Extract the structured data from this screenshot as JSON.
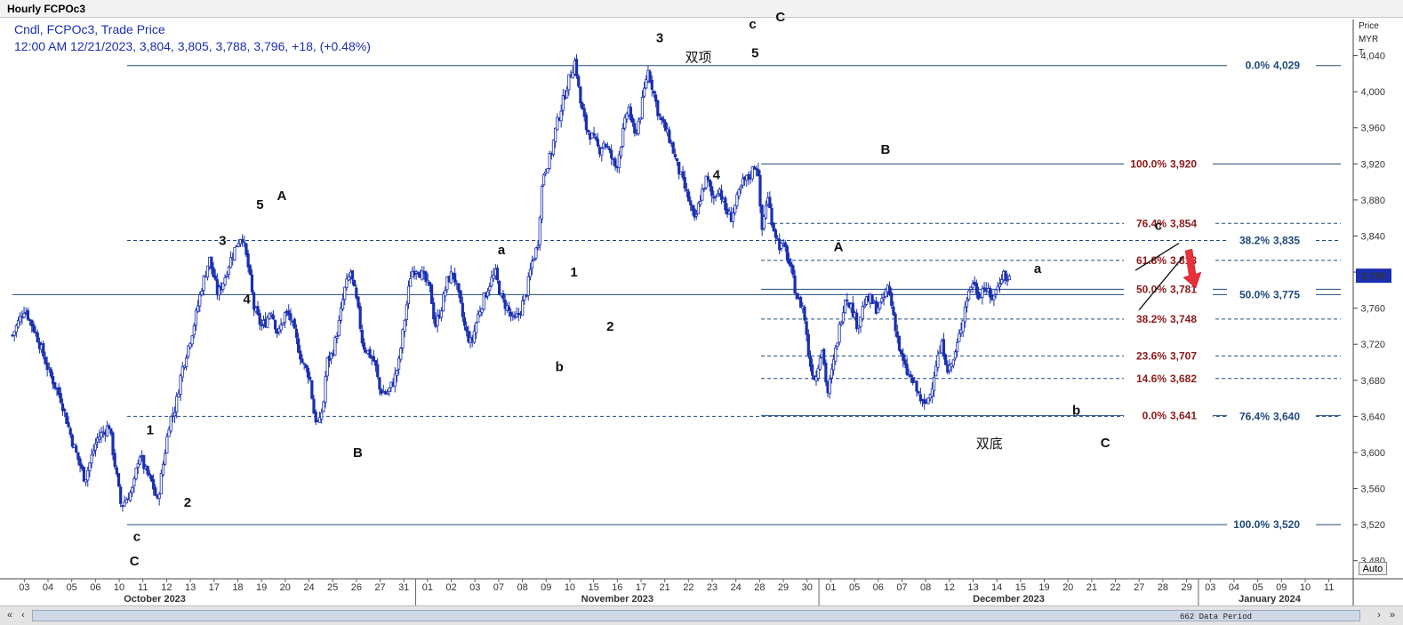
{
  "window": {
    "title": "Hourly FCPOc3"
  },
  "legend": {
    "line1": "Cndl, FCPOc3, Trade Price",
    "line2": "12:00 AM 12/21/2023, 3,804, 3,805, 3,788, 3,796, +18, (+0.48%)"
  },
  "price_axis": {
    "header": [
      "Price",
      "MYR",
      "T"
    ],
    "auto_label": "Auto",
    "last_price_badge": "3,796"
  },
  "scrollbar": {
    "data_period": "662 Data Period",
    "left_buttons": [
      "«",
      "‹"
    ],
    "right_buttons": [
      "›",
      "»"
    ]
  },
  "colors": {
    "candle": "#1a2fb0",
    "level_line": "#1e4a7a",
    "fib_retrace": "#8b1a1a",
    "fib_ext": "#1e4a7a",
    "arrow": "#e8303a"
  },
  "chart_data": {
    "type": "candlestick",
    "instrument": "FCPOc3",
    "interval": "Hourly",
    "ylim": [
      3460,
      4080
    ],
    "y_ticks": [
      3480,
      3520,
      3560,
      3600,
      3640,
      3680,
      3720,
      3760,
      3800,
      3840,
      3880,
      3920,
      3960,
      4000,
      4040
    ],
    "y_tick_labels": [
      "3,480",
      "3,520",
      "3,560",
      "3,600",
      "3,640",
      "3,680",
      "3,720",
      "3,760",
      "3,800",
      "3,840",
      "3,880",
      "3,920",
      "3,960",
      "4,000",
      "4,040"
    ],
    "x_day_labels": [
      "03",
      "04",
      "05",
      "06",
      "10",
      "11",
      "12",
      "13",
      "17",
      "18",
      "19",
      "20",
      "24",
      "25",
      "26",
      "27",
      "31",
      "01",
      "02",
      "03",
      "07",
      "08",
      "09",
      "10",
      "15",
      "16",
      "17",
      "21",
      "22",
      "23",
      "24",
      "28",
      "29",
      "30",
      "01",
      "05",
      "06",
      "07",
      "08",
      "12",
      "13",
      "14",
      "15",
      "19",
      "20",
      "21",
      "22",
      "27",
      "28",
      "29",
      "03",
      "04",
      "05",
      "09",
      "10",
      "11"
    ],
    "x_month_labels": [
      "October 2023",
      "November 2023",
      "December 2023",
      "January 2024"
    ],
    "price_path": [
      {
        "d": 0,
        "p": 3730
      },
      {
        "d": 1,
        "p": 3760
      },
      {
        "d": 2,
        "p": 3730
      },
      {
        "d": 3,
        "p": 3690
      },
      {
        "d": 4,
        "p": 3660
      },
      {
        "d": 5,
        "p": 3610
      },
      {
        "d": 6,
        "p": 3570
      },
      {
        "d": 7,
        "p": 3615
      },
      {
        "d": 8,
        "p": 3630
      },
      {
        "d": 9,
        "p": 3540
      },
      {
        "d": 10,
        "p": 3560
      },
      {
        "d": 10.5,
        "p": 3600
      },
      {
        "d": 11,
        "p": 3580
      },
      {
        "d": 11.6,
        "p": 3565
      },
      {
        "d": 12,
        "p": 3545
      },
      {
        "d": 12.4,
        "p": 3580
      },
      {
        "d": 13,
        "p": 3635
      },
      {
        "d": 13.5,
        "p": 3650
      },
      {
        "d": 14,
        "p": 3690
      },
      {
        "d": 15,
        "p": 3740
      },
      {
        "d": 15.7,
        "p": 3785
      },
      {
        "d": 16.3,
        "p": 3815
      },
      {
        "d": 17,
        "p": 3775
      },
      {
        "d": 17.6,
        "p": 3795
      },
      {
        "d": 18,
        "p": 3812
      },
      {
        "d": 18.6,
        "p": 3832
      },
      {
        "d": 19,
        "p": 3842
      },
      {
        "d": 19.6,
        "p": 3800
      },
      {
        "d": 20,
        "p": 3760
      },
      {
        "d": 20.6,
        "p": 3740
      },
      {
        "d": 21,
        "p": 3745
      },
      {
        "d": 21.4,
        "p": 3760
      },
      {
        "d": 21.8,
        "p": 3740
      },
      {
        "d": 22,
        "p": 3730
      },
      {
        "d": 22.6,
        "p": 3755
      },
      {
        "d": 23,
        "p": 3750
      },
      {
        "d": 23.4,
        "p": 3730
      },
      {
        "d": 24,
        "p": 3700
      },
      {
        "d": 24.6,
        "p": 3685
      },
      {
        "d": 25,
        "p": 3640
      },
      {
        "d": 25.4,
        "p": 3630
      },
      {
        "d": 25.8,
        "p": 3660
      },
      {
        "d": 26,
        "p": 3700
      },
      {
        "d": 26.5,
        "p": 3710
      },
      {
        "d": 27,
        "p": 3740
      },
      {
        "d": 27.5,
        "p": 3780
      },
      {
        "d": 28,
        "p": 3800
      },
      {
        "d": 28.6,
        "p": 3760
      },
      {
        "d": 29,
        "p": 3720
      },
      {
        "d": 30,
        "p": 3700
      },
      {
        "d": 30.4,
        "p": 3670
      },
      {
        "d": 31,
        "p": 3665
      },
      {
        "d": 31.6,
        "p": 3680
      },
      {
        "d": 32,
        "p": 3700
      },
      {
        "d": 32.6,
        "p": 3760
      },
      {
        "d": 33,
        "p": 3800
      },
      {
        "d": 33.5,
        "p": 3805
      },
      {
        "d": 34,
        "p": 3795
      },
      {
        "d": 34.6,
        "p": 3780
      },
      {
        "d": 35,
        "p": 3740
      },
      {
        "d": 35.5,
        "p": 3760
      },
      {
        "d": 36,
        "p": 3790
      },
      {
        "d": 36.5,
        "p": 3800
      },
      {
        "d": 37,
        "p": 3770
      },
      {
        "d": 37.5,
        "p": 3735
      },
      {
        "d": 38,
        "p": 3720
      },
      {
        "d": 38.5,
        "p": 3750
      },
      {
        "d": 39,
        "p": 3770
      },
      {
        "d": 39.6,
        "p": 3790
      },
      {
        "d": 40,
        "p": 3798
      },
      {
        "d": 40.5,
        "p": 3770
      },
      {
        "d": 41,
        "p": 3760
      },
      {
        "d": 41.5,
        "p": 3745
      },
      {
        "d": 42,
        "p": 3755
      },
      {
        "d": 42.6,
        "p": 3780
      },
      {
        "d": 43,
        "p": 3810
      },
      {
        "d": 43.5,
        "p": 3830
      },
      {
        "d": 43.8,
        "p": 3890
      },
      {
        "d": 44,
        "p": 3910
      },
      {
        "d": 44.6,
        "p": 3930
      },
      {
        "d": 45,
        "p": 3960
      },
      {
        "d": 45.6,
        "p": 3990
      },
      {
        "d": 46,
        "p": 4010
      },
      {
        "d": 46.6,
        "p": 4035
      },
      {
        "d": 47,
        "p": 3990
      },
      {
        "d": 47.5,
        "p": 3960
      },
      {
        "d": 48,
        "p": 3950
      },
      {
        "d": 48.6,
        "p": 3935
      },
      {
        "d": 49,
        "p": 3945
      },
      {
        "d": 49.5,
        "p": 3930
      },
      {
        "d": 50,
        "p": 3915
      },
      {
        "d": 50.5,
        "p": 3950
      },
      {
        "d": 51,
        "p": 3985
      },
      {
        "d": 51.5,
        "p": 3950
      },
      {
        "d": 52,
        "p": 3975
      },
      {
        "d": 52.6,
        "p": 4025
      },
      {
        "d": 53,
        "p": 4005
      },
      {
        "d": 53.5,
        "p": 3975
      },
      {
        "d": 54,
        "p": 3960
      },
      {
        "d": 54.5,
        "p": 3945
      },
      {
        "d": 55,
        "p": 3920
      },
      {
        "d": 55.5,
        "p": 3900
      },
      {
        "d": 56,
        "p": 3880
      },
      {
        "d": 56.5,
        "p": 3855
      },
      {
        "d": 57,
        "p": 3885
      },
      {
        "d": 57.5,
        "p": 3905
      },
      {
        "d": 58,
        "p": 3880
      },
      {
        "d": 58.5,
        "p": 3895
      },
      {
        "d": 59,
        "p": 3870
      },
      {
        "d": 59.5,
        "p": 3860
      },
      {
        "d": 60,
        "p": 3880
      },
      {
        "d": 60.5,
        "p": 3900
      },
      {
        "d": 61,
        "p": 3905
      },
      {
        "d": 61.5,
        "p": 3920
      },
      {
        "d": 61.8,
        "p": 3910
      },
      {
        "d": 62,
        "p": 3840
      },
      {
        "d": 62.5,
        "p": 3885
      },
      {
        "d": 63,
        "p": 3850
      },
      {
        "d": 63.5,
        "p": 3830
      },
      {
        "d": 64,
        "p": 3825
      },
      {
        "d": 64.5,
        "p": 3800
      },
      {
        "d": 65,
        "p": 3770
      },
      {
        "d": 65.5,
        "p": 3760
      },
      {
        "d": 66,
        "p": 3700
      },
      {
        "d": 66.5,
        "p": 3680
      },
      {
        "d": 67,
        "p": 3720
      },
      {
        "d": 67.5,
        "p": 3665
      },
      {
        "d": 68,
        "p": 3700
      },
      {
        "d": 68.5,
        "p": 3740
      },
      {
        "d": 69,
        "p": 3775
      },
      {
        "d": 69.5,
        "p": 3760
      },
      {
        "d": 70,
        "p": 3740
      },
      {
        "d": 70.5,
        "p": 3765
      },
      {
        "d": 71,
        "p": 3770
      },
      {
        "d": 71.5,
        "p": 3760
      },
      {
        "d": 72,
        "p": 3765
      },
      {
        "d": 72.5,
        "p": 3785
      },
      {
        "d": 73,
        "p": 3750
      },
      {
        "d": 73.5,
        "p": 3710
      },
      {
        "d": 74,
        "p": 3690
      },
      {
        "d": 74.5,
        "p": 3680
      },
      {
        "d": 75,
        "p": 3665
      },
      {
        "d": 75.5,
        "p": 3650
      },
      {
        "d": 76,
        "p": 3665
      },
      {
        "d": 76.5,
        "p": 3700
      },
      {
        "d": 77,
        "p": 3720
      },
      {
        "d": 77.5,
        "p": 3690
      },
      {
        "d": 78,
        "p": 3705
      },
      {
        "d": 78.5,
        "p": 3735
      },
      {
        "d": 79,
        "p": 3770
      },
      {
        "d": 79.5,
        "p": 3790
      },
      {
        "d": 80,
        "p": 3775
      },
      {
        "d": 80.5,
        "p": 3785
      },
      {
        "d": 81,
        "p": 3770
      },
      {
        "d": 81.5,
        "p": 3780
      },
      {
        "d": 82,
        "p": 3800
      },
      {
        "d": 82.4,
        "p": 3790
      },
      {
        "d": 82.6,
        "p": 3796
      }
    ],
    "day_axis_range": [
      0,
      110
    ],
    "horizontal_levels": [
      {
        "start_day": 9.5,
        "end_day": 110,
        "price": 4029,
        "style": "solid"
      },
      {
        "start_day": 62,
        "end_day": 110,
        "price": 3920,
        "style": "solid"
      },
      {
        "start_day": 9.5,
        "end_day": 110,
        "price": 3835,
        "style": "dashed"
      },
      {
        "start_day": 62,
        "end_day": 110,
        "price": 3854,
        "style": "dashed"
      },
      {
        "start_day": 62,
        "end_day": 110,
        "price": 3813,
        "style": "dashed"
      },
      {
        "start_day": 62,
        "end_day": 110,
        "price": 3781,
        "style": "solid"
      },
      {
        "start_day": 0,
        "end_day": 110,
        "price": 3775,
        "style": "solid"
      },
      {
        "start_day": 62,
        "end_day": 110,
        "price": 3748,
        "style": "dashed"
      },
      {
        "start_day": 62,
        "end_day": 110,
        "price": 3707,
        "style": "dashed"
      },
      {
        "start_day": 62,
        "end_day": 110,
        "price": 3682,
        "style": "dashed"
      },
      {
        "start_day": 62,
        "end_day": 110,
        "price": 3641,
        "style": "solid"
      },
      {
        "start_day": 9.5,
        "end_day": 110,
        "price": 3640,
        "style": "dashed"
      },
      {
        "start_day": 9.5,
        "end_day": 110,
        "price": 3520,
        "style": "solid"
      }
    ],
    "fib_labels": [
      {
        "text": "0.0%",
        "value": "4,029",
        "price": 4029,
        "group": "ext",
        "col": "right"
      },
      {
        "text": "100.0%",
        "value": "3,920",
        "price": 3920,
        "group": "ret",
        "col": "mid"
      },
      {
        "text": "76.4%",
        "value": "3,854",
        "price": 3854,
        "group": "ret",
        "col": "mid"
      },
      {
        "text": "38.2%",
        "value": "3,835",
        "price": 3835,
        "group": "ext",
        "col": "right"
      },
      {
        "text": "61.8%",
        "value": "3,813",
        "price": 3813,
        "group": "ret",
        "col": "mid"
      },
      {
        "text": "50.0%",
        "value": "3,781",
        "price": 3781,
        "group": "ret",
        "col": "mid"
      },
      {
        "text": "50.0%",
        "value": "3,775",
        "price": 3775,
        "group": "ext",
        "col": "right"
      },
      {
        "text": "38.2%",
        "value": "3,748",
        "price": 3748,
        "group": "ret",
        "col": "mid"
      },
      {
        "text": "23.6%",
        "value": "3,707",
        "price": 3707,
        "group": "ret",
        "col": "mid"
      },
      {
        "text": "14.6%",
        "value": "3,682",
        "price": 3682,
        "group": "ret",
        "col": "mid"
      },
      {
        "text": "0.0%",
        "value": "3,641",
        "price": 3641,
        "group": "ret",
        "col": "mid"
      },
      {
        "text": "76.4%",
        "value": "3,640",
        "price": 3640,
        "group": "ext",
        "col": "right"
      },
      {
        "text": "100.0%",
        "value": "3,520",
        "price": 3520,
        "group": "ext",
        "col": "right"
      }
    ],
    "wave_labels": [
      {
        "text": "c",
        "day": 10.3,
        "price": 3502
      },
      {
        "text": "C",
        "day": 10.1,
        "price": 3475
      },
      {
        "text": "1",
        "day": 11.4,
        "price": 3620
      },
      {
        "text": "2",
        "day": 14.5,
        "price": 3540
      },
      {
        "text": "3",
        "day": 17.4,
        "price": 3830
      },
      {
        "text": "4",
        "day": 19.4,
        "price": 3765
      },
      {
        "text": "5",
        "day": 20.5,
        "price": 3870
      },
      {
        "text": "A",
        "day": 22.3,
        "price": 3880
      },
      {
        "text": "B",
        "day": 28.6,
        "price": 3595
      },
      {
        "text": "a",
        "day": 40.5,
        "price": 3820
      },
      {
        "text": "1",
        "day": 46.5,
        "price": 3795
      },
      {
        "text": "b",
        "day": 45.3,
        "price": 3690
      },
      {
        "text": "2",
        "day": 49.5,
        "price": 3735
      },
      {
        "text": "3",
        "day": 53.6,
        "price": 4055
      },
      {
        "text": "4",
        "day": 58.3,
        "price": 3903
      },
      {
        "text": "c",
        "day": 61.3,
        "price": 4070
      },
      {
        "text": "C",
        "day": 63.6,
        "price": 4078
      },
      {
        "text": "5",
        "day": 61.5,
        "price": 4038
      },
      {
        "text": "B",
        "day": 72.3,
        "price": 3931
      },
      {
        "text": "A",
        "day": 68.4,
        "price": 3823
      },
      {
        "text": "a",
        "day": 84.9,
        "price": 3799
      },
      {
        "text": "b",
        "day": 88.1,
        "price": 3642
      },
      {
        "text": "C",
        "day": 90.5,
        "price": 3606
      },
      {
        "text": "c",
        "day": 94.9,
        "price": 3847
      }
    ],
    "annotations": [
      {
        "text": "双项",
        "day": 56.8,
        "price": 4033
      },
      {
        "text": "双底",
        "day": 80.9,
        "price": 3605
      }
    ]
  }
}
